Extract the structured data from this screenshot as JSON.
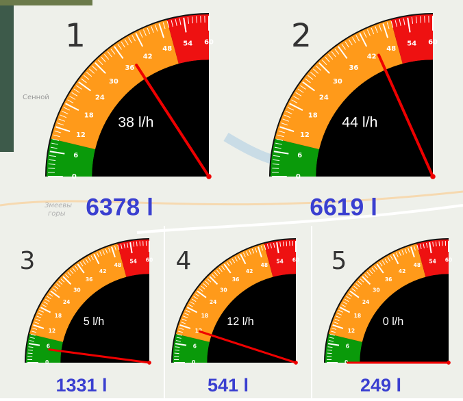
{
  "map_labels": [
    "Сенной",
    "Змеевы",
    "горы"
  ],
  "scale": {
    "min": 0,
    "max": 60,
    "ticks": [
      0,
      6,
      12,
      18,
      24,
      30,
      36,
      42,
      48,
      54,
      60
    ],
    "zones": [
      {
        "from": 0,
        "to": 9,
        "color": "#0a9a0a"
      },
      {
        "from": 9,
        "to": 50,
        "color": "#ff9a1a"
      },
      {
        "from": 50,
        "to": 60,
        "color": "#ee1111"
      }
    ]
  },
  "gauges": [
    {
      "number": "1",
      "rate": 38,
      "rate_label": "38 l/h",
      "total": "6378 l"
    },
    {
      "number": "2",
      "rate": 44,
      "rate_label": "44 l/h",
      "total": "6619 l"
    },
    {
      "number": "3",
      "rate": 5,
      "rate_label": "5 l/h",
      "total": "1331 l"
    },
    {
      "number": "4",
      "rate": 12,
      "rate_label": "12 l/h",
      "total": "541 l"
    },
    {
      "number": "5",
      "rate": 0,
      "rate_label": "0 l/h",
      "total": "249 l"
    }
  ]
}
